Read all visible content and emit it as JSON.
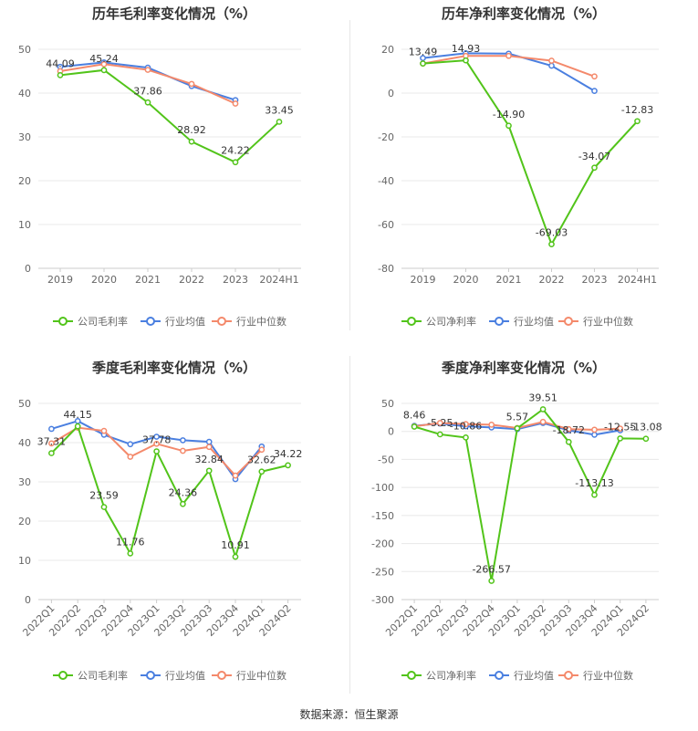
{
  "source_text": "数据来源：恒生聚源",
  "legend_labels": {
    "industry_avg": "行业均值",
    "industry_median": "行业中位数"
  },
  "colors": {
    "company": "#52c41a",
    "industry_avg": "#4a7fe0",
    "industry_median": "#f4896b",
    "grid": "#e8e8e8",
    "axis_text": "#666666"
  },
  "chart_data": [
    {
      "type": "line",
      "title": "历年毛利率变化情况（%）",
      "categories": [
        "2019",
        "2020",
        "2021",
        "2022",
        "2023",
        "2024H1"
      ],
      "ylim": [
        0,
        50
      ],
      "yticks": [
        0,
        10,
        20,
        30,
        40,
        50
      ],
      "series": [
        {
          "key": "company",
          "name": "公司毛利率",
          "values": [
            44.09,
            45.24,
            37.86,
            28.92,
            24.22,
            33.45
          ],
          "labels": [
            "44.09",
            "45.24",
            "37.86",
            "28.92",
            "24.22",
            "33.45"
          ]
        },
        {
          "key": "industry_avg",
          "name": "行业均值",
          "values": [
            46.0,
            47.0,
            45.8,
            41.6,
            38.4,
            null
          ]
        },
        {
          "key": "industry_median",
          "name": "行业中位数",
          "values": [
            45.0,
            46.6,
            45.3,
            42.1,
            37.6,
            null
          ]
        }
      ]
    },
    {
      "type": "line",
      "title": "历年净利率变化情况（%）",
      "categories": [
        "2019",
        "2020",
        "2021",
        "2022",
        "2023",
        "2024H1"
      ],
      "ylim": [
        -80,
        20
      ],
      "yticks": [
        -80,
        -60,
        -40,
        -20,
        0,
        20
      ],
      "series": [
        {
          "key": "company",
          "name": "公司净利率",
          "values": [
            13.49,
            14.93,
            -14.9,
            -69.03,
            -34.07,
            -12.83
          ],
          "labels": [
            "13.49",
            "14.93",
            "-14.90",
            "-69.03",
            "-34.07",
            "-12.83"
          ]
        },
        {
          "key": "industry_avg",
          "name": "行业均值",
          "values": [
            16.0,
            18.2,
            18.0,
            12.5,
            1.0,
            null
          ]
        },
        {
          "key": "industry_median",
          "name": "行业中位数",
          "values": [
            13.5,
            17.0,
            17.0,
            14.8,
            7.6,
            null
          ]
        }
      ]
    },
    {
      "type": "line",
      "title": "季度毛利率变化情况（%）",
      "categories": [
        "2022Q1",
        "2022Q2",
        "2022Q3",
        "2022Q4",
        "2023Q1",
        "2023Q2",
        "2023Q3",
        "2023Q4",
        "2024Q1",
        "2024Q2"
      ],
      "ylim": [
        0,
        50
      ],
      "yticks": [
        0,
        10,
        20,
        30,
        40,
        50
      ],
      "series": [
        {
          "key": "company",
          "name": "公司毛利率",
          "values": [
            37.31,
            44.15,
            23.59,
            11.76,
            37.78,
            24.36,
            32.84,
            10.91,
            32.62,
            34.22
          ],
          "labels": [
            "37.31",
            "44.15",
            "23.59",
            "11.76",
            "37.78",
            "24.36",
            "32.84",
            "10.91",
            "32.62",
            "34.22"
          ]
        },
        {
          "key": "industry_avg",
          "name": "行业均值",
          "values": [
            43.5,
            45.5,
            42.0,
            39.6,
            41.5,
            40.6,
            40.2,
            30.7,
            39.0,
            null
          ]
        },
        {
          "key": "industry_median",
          "name": "行业中位数",
          "values": [
            39.8,
            43.8,
            43.0,
            36.4,
            39.7,
            37.9,
            38.9,
            31.6,
            38.2,
            null
          ]
        }
      ]
    },
    {
      "type": "line",
      "title": "季度净利率变化情况（%）",
      "categories": [
        "2022Q1",
        "2022Q2",
        "2022Q3",
        "2022Q4",
        "2023Q1",
        "2023Q2",
        "2023Q3",
        "2023Q4",
        "2024Q1",
        "2024Q2"
      ],
      "ylim": [
        -300,
        50
      ],
      "yticks": [
        -300,
        -250,
        -200,
        -150,
        -100,
        -50,
        0,
        50
      ],
      "series": [
        {
          "key": "company",
          "name": "公司净利率",
          "values": [
            8.46,
            -5.25,
            -10.86,
            -266.57,
            5.57,
            39.51,
            -18.72,
            -113.13,
            -12.55,
            -13.08
          ],
          "labels": [
            "8.46",
            "-5.25",
            "-10.86",
            "-266.57",
            "5.57",
            "39.51",
            "-18.72",
            "-113.13",
            "-12.55",
            "-13.08"
          ]
        },
        {
          "key": "industry_avg",
          "name": "行业均值",
          "values": [
            10.0,
            14.0,
            9.0,
            7.0,
            4.0,
            15.0,
            2.0,
            -6.0,
            2.0,
            null
          ]
        },
        {
          "key": "industry_median",
          "name": "行业中位数",
          "values": [
            9.0,
            15.0,
            13.0,
            12.0,
            6.0,
            17.0,
            4.0,
            3.0,
            5.0,
            null
          ]
        }
      ]
    }
  ]
}
